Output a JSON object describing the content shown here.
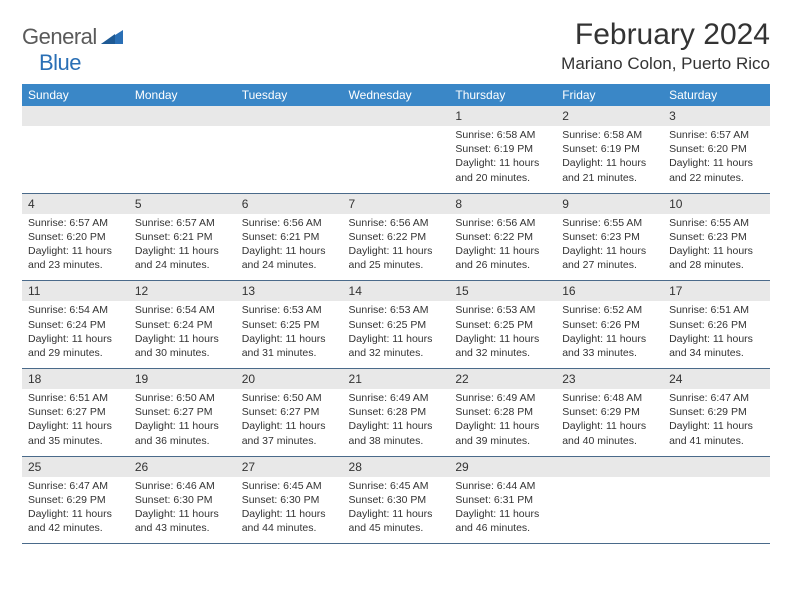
{
  "logo": {
    "text_gray": "General",
    "text_blue": "Blue",
    "icon_color": "#2a6fb5"
  },
  "title": "February 2024",
  "location": "Mariano Colon, Puerto Rico",
  "colors": {
    "header_bg": "#3a87c7",
    "header_text": "#ffffff",
    "daynum_bg": "#e8e8e8",
    "border": "#4a6a8a",
    "text": "#333333"
  },
  "day_headers": [
    "Sunday",
    "Monday",
    "Tuesday",
    "Wednesday",
    "Thursday",
    "Friday",
    "Saturday"
  ],
  "weeks": [
    [
      {
        "empty": true
      },
      {
        "empty": true
      },
      {
        "empty": true
      },
      {
        "empty": true
      },
      {
        "num": "1",
        "sunrise": "6:58 AM",
        "sunset": "6:19 PM",
        "daylight": "11 hours and 20 minutes."
      },
      {
        "num": "2",
        "sunrise": "6:58 AM",
        "sunset": "6:19 PM",
        "daylight": "11 hours and 21 minutes."
      },
      {
        "num": "3",
        "sunrise": "6:57 AM",
        "sunset": "6:20 PM",
        "daylight": "11 hours and 22 minutes."
      }
    ],
    [
      {
        "num": "4",
        "sunrise": "6:57 AM",
        "sunset": "6:20 PM",
        "daylight": "11 hours and 23 minutes."
      },
      {
        "num": "5",
        "sunrise": "6:57 AM",
        "sunset": "6:21 PM",
        "daylight": "11 hours and 24 minutes."
      },
      {
        "num": "6",
        "sunrise": "6:56 AM",
        "sunset": "6:21 PM",
        "daylight": "11 hours and 24 minutes."
      },
      {
        "num": "7",
        "sunrise": "6:56 AM",
        "sunset": "6:22 PM",
        "daylight": "11 hours and 25 minutes."
      },
      {
        "num": "8",
        "sunrise": "6:56 AM",
        "sunset": "6:22 PM",
        "daylight": "11 hours and 26 minutes."
      },
      {
        "num": "9",
        "sunrise": "6:55 AM",
        "sunset": "6:23 PM",
        "daylight": "11 hours and 27 minutes."
      },
      {
        "num": "10",
        "sunrise": "6:55 AM",
        "sunset": "6:23 PM",
        "daylight": "11 hours and 28 minutes."
      }
    ],
    [
      {
        "num": "11",
        "sunrise": "6:54 AM",
        "sunset": "6:24 PM",
        "daylight": "11 hours and 29 minutes."
      },
      {
        "num": "12",
        "sunrise": "6:54 AM",
        "sunset": "6:24 PM",
        "daylight": "11 hours and 30 minutes."
      },
      {
        "num": "13",
        "sunrise": "6:53 AM",
        "sunset": "6:25 PM",
        "daylight": "11 hours and 31 minutes."
      },
      {
        "num": "14",
        "sunrise": "6:53 AM",
        "sunset": "6:25 PM",
        "daylight": "11 hours and 32 minutes."
      },
      {
        "num": "15",
        "sunrise": "6:53 AM",
        "sunset": "6:25 PM",
        "daylight": "11 hours and 32 minutes."
      },
      {
        "num": "16",
        "sunrise": "6:52 AM",
        "sunset": "6:26 PM",
        "daylight": "11 hours and 33 minutes."
      },
      {
        "num": "17",
        "sunrise": "6:51 AM",
        "sunset": "6:26 PM",
        "daylight": "11 hours and 34 minutes."
      }
    ],
    [
      {
        "num": "18",
        "sunrise": "6:51 AM",
        "sunset": "6:27 PM",
        "daylight": "11 hours and 35 minutes."
      },
      {
        "num": "19",
        "sunrise": "6:50 AM",
        "sunset": "6:27 PM",
        "daylight": "11 hours and 36 minutes."
      },
      {
        "num": "20",
        "sunrise": "6:50 AM",
        "sunset": "6:27 PM",
        "daylight": "11 hours and 37 minutes."
      },
      {
        "num": "21",
        "sunrise": "6:49 AM",
        "sunset": "6:28 PM",
        "daylight": "11 hours and 38 minutes."
      },
      {
        "num": "22",
        "sunrise": "6:49 AM",
        "sunset": "6:28 PM",
        "daylight": "11 hours and 39 minutes."
      },
      {
        "num": "23",
        "sunrise": "6:48 AM",
        "sunset": "6:29 PM",
        "daylight": "11 hours and 40 minutes."
      },
      {
        "num": "24",
        "sunrise": "6:47 AM",
        "sunset": "6:29 PM",
        "daylight": "11 hours and 41 minutes."
      }
    ],
    [
      {
        "num": "25",
        "sunrise": "6:47 AM",
        "sunset": "6:29 PM",
        "daylight": "11 hours and 42 minutes."
      },
      {
        "num": "26",
        "sunrise": "6:46 AM",
        "sunset": "6:30 PM",
        "daylight": "11 hours and 43 minutes."
      },
      {
        "num": "27",
        "sunrise": "6:45 AM",
        "sunset": "6:30 PM",
        "daylight": "11 hours and 44 minutes."
      },
      {
        "num": "28",
        "sunrise": "6:45 AM",
        "sunset": "6:30 PM",
        "daylight": "11 hours and 45 minutes."
      },
      {
        "num": "29",
        "sunrise": "6:44 AM",
        "sunset": "6:31 PM",
        "daylight": "11 hours and 46 minutes."
      },
      {
        "empty": true
      },
      {
        "empty": true
      }
    ]
  ],
  "labels": {
    "sunrise": "Sunrise: ",
    "sunset": "Sunset: ",
    "daylight": "Daylight: "
  }
}
